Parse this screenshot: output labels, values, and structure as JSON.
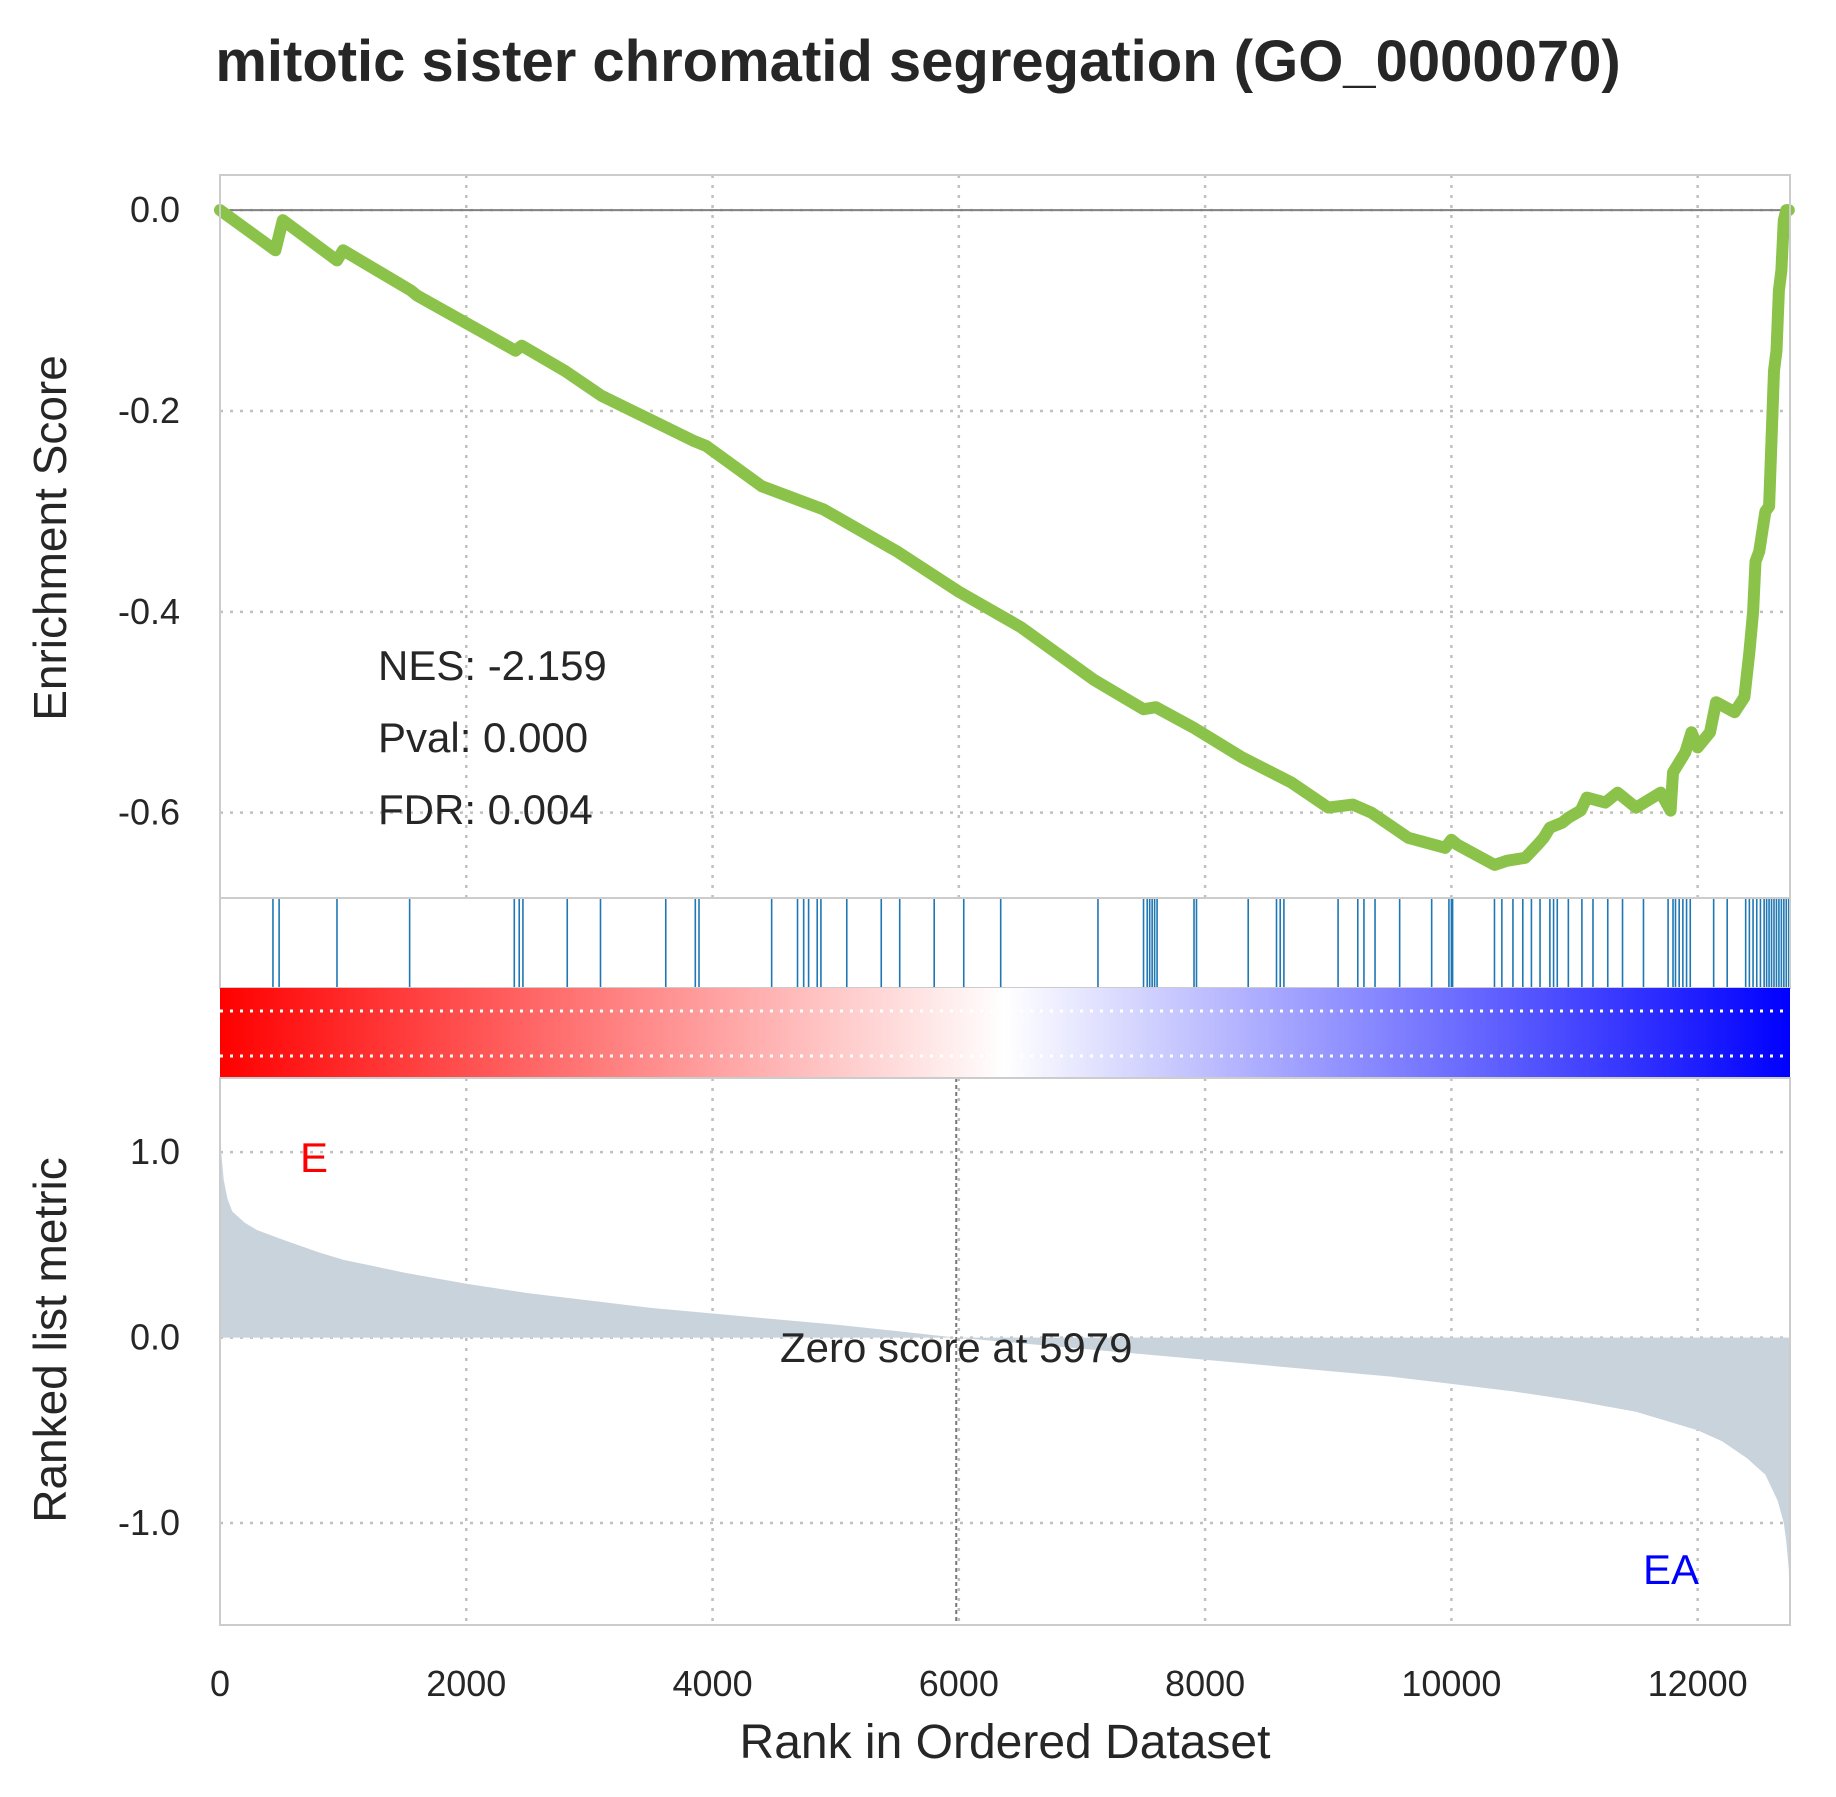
{
  "chart_data": {
    "type": "line",
    "title": "mitotic sister chromatid segregation (GO_0000070)",
    "xlabel": "Rank in Ordered Dataset",
    "xlim": [
      0,
      12750
    ],
    "xticks": [
      0,
      2000,
      4000,
      6000,
      8000,
      10000,
      12000
    ],
    "grid": true,
    "panels": {
      "enrichment": {
        "ylabel": "Enrichment Score",
        "ylim": [
          -0.685,
          0.035
        ],
        "yticks": [
          0.0,
          -0.2,
          -0.4,
          -0.6
        ],
        "ytick_labels": [
          "0.0",
          "-0.2",
          "-0.4",
          "-0.6"
        ],
        "line_color": "#8BC34A",
        "series": [
          {
            "x": [
              0,
              450,
              510,
              950,
              1000,
              1550,
              1600,
              2400,
              2450,
              2800,
              3100,
              3600,
              3850,
              3950,
              4400,
              4900,
              5000,
              5500,
              6000,
              6500,
              7100,
              7500,
              7600,
              7900,
              8300,
              8700,
              9000,
              9200,
              9350,
              9650,
              9950,
              10000,
              10050,
              10350,
              10450,
              10600,
              10700,
              10750,
              10800,
              10900,
              10950,
              11050,
              11100,
              11250,
              11350,
              11500,
              11700,
              11780,
              11800,
              11900,
              11950,
              12000,
              12100,
              12150,
              12300,
              12380,
              12420,
              12450,
              12470,
              12500,
              12550,
              12580,
              12620,
              12640,
              12660,
              12680,
              12700,
              12720,
              12740
            ],
            "y": [
              0.0,
              -0.04,
              -0.01,
              -0.05,
              -0.04,
              -0.08,
              -0.085,
              -0.14,
              -0.135,
              -0.16,
              -0.185,
              -0.215,
              -0.23,
              -0.235,
              -0.275,
              -0.298,
              -0.305,
              -0.34,
              -0.38,
              -0.415,
              -0.468,
              -0.497,
              -0.495,
              -0.515,
              -0.545,
              -0.57,
              -0.595,
              -0.592,
              -0.6,
              -0.625,
              -0.635,
              -0.627,
              -0.632,
              -0.652,
              -0.648,
              -0.645,
              -0.632,
              -0.625,
              -0.615,
              -0.61,
              -0.605,
              -0.598,
              -0.585,
              -0.59,
              -0.58,
              -0.595,
              -0.58,
              -0.598,
              -0.56,
              -0.54,
              -0.52,
              -0.535,
              -0.52,
              -0.49,
              -0.5,
              -0.485,
              -0.44,
              -0.4,
              -0.35,
              -0.34,
              -0.3,
              -0.295,
              -0.16,
              -0.14,
              -0.08,
              -0.06,
              -0.01,
              0.0,
              0.0
            ]
          }
        ],
        "annotations": [
          "NES: -2.159",
          "Pval: 0.000",
          "FDR: 0.004"
        ]
      },
      "hits": {
        "color": "#1f77b4",
        "positions": [
          430,
          480,
          950,
          1540,
          2390,
          2430,
          2460,
          2820,
          3090,
          3620,
          3860,
          3890,
          4480,
          4690,
          4740,
          4780,
          4850,
          4880,
          5090,
          5370,
          5520,
          5800,
          6040,
          6340,
          7130,
          7500,
          7530,
          7550,
          7570,
          7590,
          7610,
          7910,
          7930,
          8350,
          8580,
          8610,
          8640,
          9080,
          9240,
          9290,
          9380,
          9580,
          9840,
          9980,
          10000,
          10010,
          10350,
          10410,
          10500,
          10580,
          10650,
          10720,
          10800,
          10830,
          10860,
          10950,
          11060,
          11150,
          11270,
          11390,
          11560,
          11760,
          11800,
          11820,
          11850,
          11880,
          11910,
          11940,
          12130,
          12240,
          12390,
          12420,
          12450,
          12480,
          12510,
          12540,
          12560,
          12580,
          12600,
          12620,
          12640,
          12660,
          12680,
          12700,
          12720,
          12740
        ]
      },
      "heatmap": {
        "colormap": [
          "#ff0000",
          "#ffffff",
          "#0000ff"
        ]
      },
      "ranked_metric": {
        "ylabel": "Ranked list metric",
        "ylim": [
          -1.55,
          1.4
        ],
        "yticks": [
          1.0,
          0.0,
          -1.0
        ],
        "ytick_labels": [
          "1.0",
          "0.0",
          "-1.0"
        ],
        "fill_color": "#C9D3DC",
        "zero_score_label": "Zero score at 5979",
        "zero_score_rank": 5979,
        "pos_label": "E",
        "neg_label": "EA",
        "pos_color": "#ff0000",
        "neg_color": "#0000ff",
        "series": [
          {
            "x": [
              0,
              10,
              30,
              60,
              100,
              200,
              300,
              500,
              800,
              1000,
              1500,
              2000,
              2500,
              3000,
              3500,
              4000,
              4500,
              5000,
              5500,
              5979,
              6500,
              7000,
              7500,
              8000,
              8500,
              9000,
              9500,
              10000,
              10500,
              11000,
              11500,
              12000,
              12200,
              12400,
              12550,
              12650,
              12700,
              12720,
              12740,
              12750
            ],
            "y": [
              1.25,
              1.0,
              0.85,
              0.75,
              0.68,
              0.62,
              0.58,
              0.53,
              0.46,
              0.42,
              0.35,
              0.29,
              0.24,
              0.2,
              0.16,
              0.13,
              0.1,
              0.07,
              0.035,
              0.0,
              -0.03,
              -0.06,
              -0.09,
              -0.12,
              -0.15,
              -0.18,
              -0.21,
              -0.25,
              -0.29,
              -0.34,
              -0.4,
              -0.5,
              -0.56,
              -0.65,
              -0.74,
              -0.88,
              -1.0,
              -1.1,
              -1.25,
              -1.55
            ]
          }
        ]
      }
    }
  }
}
